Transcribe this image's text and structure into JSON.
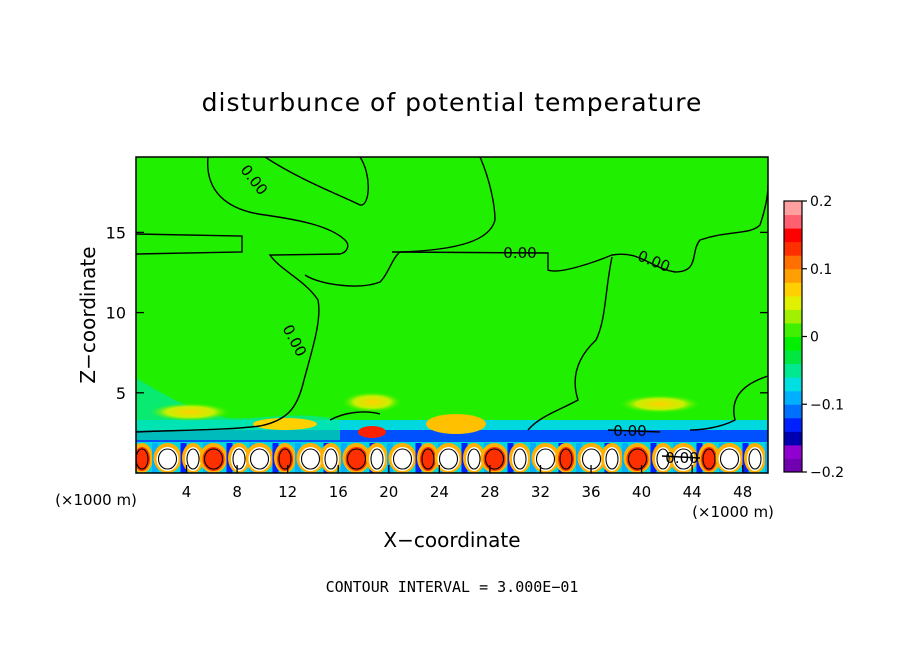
{
  "chart_data": {
    "type": "heatmap",
    "title": "disturbunce of potential temperature",
    "xlabel": "X−coordinate",
    "ylabel": "Z−coordinate",
    "x_unit": "(×1000 m)",
    "x_unit_right": "(×1000 m)",
    "xlim": [
      0,
      50
    ],
    "ylim": [
      0,
      19.7
    ],
    "x_ticks": [
      4,
      8,
      12,
      16,
      20,
      24,
      28,
      32,
      36,
      40,
      44,
      48
    ],
    "y_ticks": [
      5,
      10,
      15
    ],
    "colorbar": {
      "range": [
        -0.2,
        0.2
      ],
      "ticks": [
        0.2,
        0.1,
        0,
        -0.1,
        -0.2
      ],
      "tick_labels": [
        "0.2",
        "0.1",
        "0",
        "−0.1",
        "−0.2"
      ],
      "colors": [
        "#7000b0",
        "#9000d0",
        "#0000b0",
        "#0020ff",
        "#0070ff",
        "#00b0ff",
        "#00e0e0",
        "#00e890",
        "#00e840",
        "#00f000",
        "#40f000",
        "#a0f000",
        "#e0f000",
        "#ffd000",
        "#ffa000",
        "#ff7000",
        "#ff3000",
        "#ff0000",
        "#ff6070",
        "#ffa0a0"
      ]
    },
    "contour_labels": [
      "0.00",
      "0.00",
      "0.00",
      "0.00",
      "0.00",
      "0.00"
    ],
    "contour_interval": "CONTOUR INTERVAL = 3.000E−01"
  }
}
